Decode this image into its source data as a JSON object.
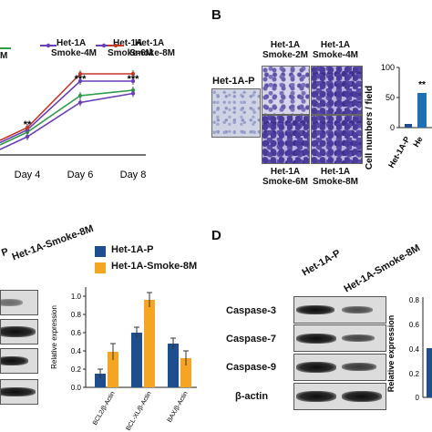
{
  "panels": {
    "b": "B",
    "d": "D"
  },
  "panel_a": {
    "legend": [
      {
        "label": "M",
        "color": "#2e9b4a"
      },
      {
        "label": "Het-1A Smoke-4M",
        "color": "#6a3fb5"
      },
      {
        "label": "Het-1A Smoke-6M",
        "color": "#6a3fb5"
      },
      {
        "label": "Het-1A Smoke-8M",
        "color": "#c0392b"
      }
    ],
    "legend_text": {
      "l1a": "Het-1A",
      "l1b": "Smoke-4M",
      "l2a": "Het-1A",
      "l2b": "Smoke-6M",
      "l3a": "Het-1A",
      "l3b": "Smoke-8M",
      "l0": "M"
    },
    "significance": {
      "day4": "**",
      "day6": "***",
      "day8": "***"
    }
  },
  "panel_b": {
    "single_label": "Het-1A-P",
    "labels": {
      "top_left": [
        "Het-1A",
        "Smoke-2M"
      ],
      "top_right": [
        "Het-1A",
        "Smoke-4M"
      ],
      "bottom_left": [
        "Het-1A",
        "Smoke-6M"
      ],
      "bottom_right": [
        "Het-1A",
        "Smoke-8M"
      ]
    },
    "mini_chart": {
      "ylabel": "Cell numbers / field",
      "yticks": [
        "0",
        "50",
        "100"
      ],
      "sig": "**",
      "xlabels": [
        "Het-1A-P",
        "He"
      ]
    }
  },
  "panel_c": {
    "header_p": "P",
    "header_smoke": "Het-1A-Smoke-8M"
  },
  "panel_d": {
    "header_p": "Het-1A-P",
    "header_smoke": "Het-1A-Smoke-8M",
    "rows": [
      "Caspase-3",
      "Caspase-7",
      "Caspase-9",
      "β-actin"
    ],
    "mini_chart": {
      "ylabel": "Relative expression",
      "yticks": [
        "0",
        "0.2",
        "0.4",
        "0.6",
        "0.8"
      ]
    }
  },
  "chart_data": [
    {
      "type": "line",
      "categories": [
        "Day 4",
        "Day 6",
        "Day 8"
      ],
      "series": [
        {
          "name": "M",
          "color": "#2e9b4a",
          "values": [
            0.7,
            1.5,
            1.62
          ]
        },
        {
          "name": "Het-1A Smoke-4M",
          "color": "#6a3fb5",
          "values": [
            0.6,
            1.35,
            1.55
          ]
        },
        {
          "name": "Het-1A Smoke-6M",
          "color": "#6a3fb5",
          "values": [
            0.75,
            1.82,
            1.82
          ]
        },
        {
          "name": "Het-1A Smoke-8M",
          "color": "#c0392b",
          "values": [
            0.8,
            1.98,
            1.98
          ]
        }
      ],
      "significance": [
        "**",
        "***",
        "***"
      ]
    },
    {
      "type": "bar",
      "legend": [
        "Het-1A-P",
        "Het-1A-Smoke-8M"
      ],
      "legend_placement": "top",
      "categories": [
        "BCL2/β-Actin",
        "BCL-XL/β-Actin",
        "BAX/β-Actin"
      ],
      "ylabel": "Relative expression",
      "yticks": [
        "0.0",
        "0.2",
        "0.4",
        "0.6",
        "0.8",
        "1.0"
      ],
      "ylim": [
        0,
        1.1
      ],
      "series": [
        {
          "name": "Het-1A-P",
          "color": "#1f4e8c",
          "values": [
            0.15,
            0.6,
            0.48
          ],
          "errors": [
            0.05,
            0.06,
            0.06
          ]
        },
        {
          "name": "Het-1A-Smoke-8M",
          "color": "#f5a524",
          "values": [
            0.39,
            0.96,
            0.32
          ],
          "errors": [
            0.09,
            0.08,
            0.08
          ]
        }
      ]
    }
  ]
}
